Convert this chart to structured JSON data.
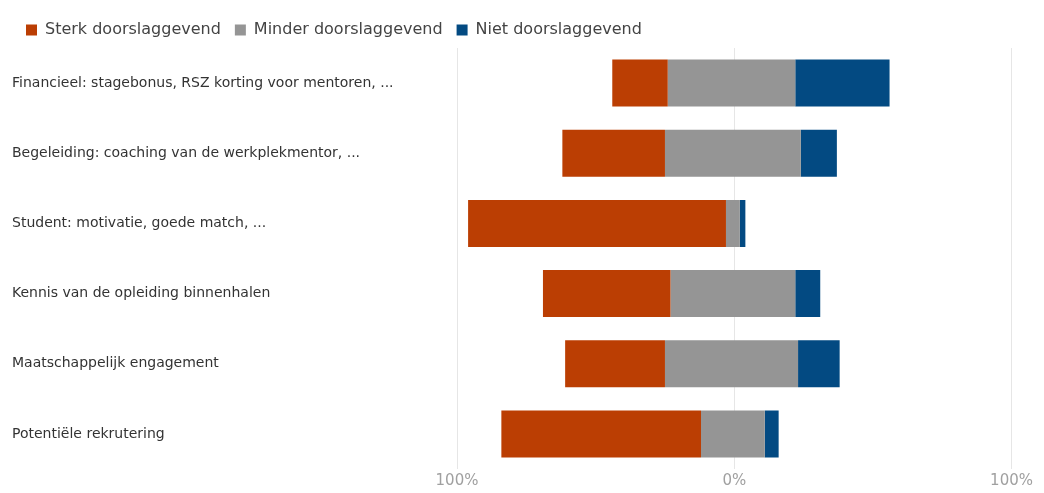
{
  "chart_data": {
    "type": "bar",
    "orientation": "horizontal",
    "categories": [
      "Financieel: stagebonus, RSZ korting voor mentoren, ...",
      "Begeleiding: coaching van de werkplekmentor, ...",
      "Student: motivatie, goede match, ...",
      "Kennis van de opleiding binnenhalen",
      "Maatschappelijk engagement",
      "Potentiële rekrutering"
    ],
    "series": [
      {
        "name": "Sterk doorslaggevend",
        "color": "#bb3e03",
        "base": [
          -44,
          -62,
          -96,
          -69,
          -61,
          -84
        ],
        "values": [
          20,
          37,
          93,
          46,
          36,
          72
        ]
      },
      {
        "name": "Minder doorslaggevend",
        "color": "#959595",
        "base": [
          -24,
          -25,
          -3,
          -23,
          -25,
          -12
        ],
        "values": [
          46,
          49,
          5,
          45,
          48,
          23
        ]
      },
      {
        "name": "Niet doorslaggevend",
        "color": "#034a82",
        "base": [
          22,
          24,
          2,
          22,
          23,
          11
        ],
        "values": [
          34,
          13,
          2,
          9,
          15,
          5
        ]
      }
    ],
    "xlim": [
      -100,
      100
    ],
    "xticks": [
      {
        "value": -100,
        "label": "100%"
      },
      {
        "value": 0,
        "label": "0%"
      },
      {
        "value": 100,
        "label": "100%"
      }
    ],
    "grid": "x",
    "legend": "top left"
  }
}
